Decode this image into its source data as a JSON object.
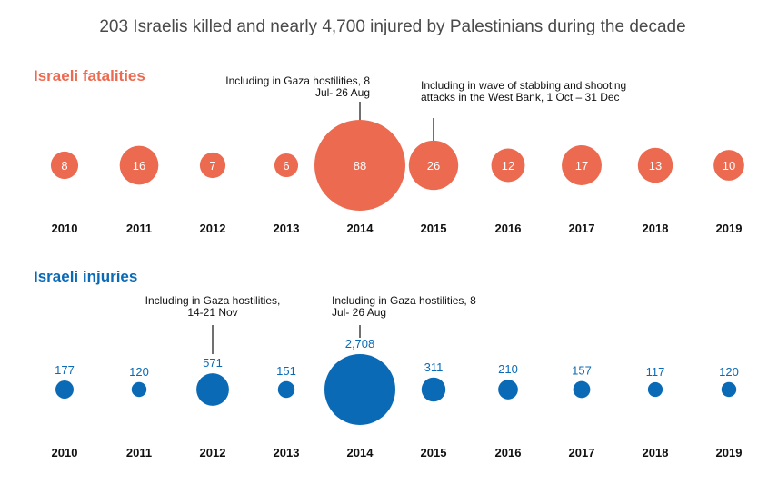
{
  "title": "203 Israelis killed and nearly 4,700 injured by Palestinians during the decade",
  "colors": {
    "fatalities": "#ec6a50",
    "injuries": "#0a6ab6",
    "title": "#4a4a4a",
    "text": "#111111"
  },
  "chart_data": [
    {
      "type": "scatter",
      "title": "Israeli fatalities",
      "x": [
        "2010",
        "2011",
        "2012",
        "2013",
        "2014",
        "2015",
        "2016",
        "2017",
        "2018",
        "2019"
      ],
      "values": [
        8,
        16,
        7,
        6,
        88,
        26,
        12,
        17,
        13,
        10
      ],
      "labels": [
        "8",
        "16",
        "7",
        "6",
        "88",
        "26",
        "12",
        "17",
        "13",
        "10"
      ],
      "annotations": [
        {
          "year": "2014",
          "lines": [
            "Including in Gaza hostilities, 8",
            "Jul- 26 Aug"
          ]
        },
        {
          "year": "2015",
          "lines": [
            "Including in wave of stabbing and shooting",
            "attacks in the West Bank, 1 Oct – 31 Dec"
          ]
        }
      ]
    },
    {
      "type": "scatter",
      "title": "Israeli injuries",
      "x": [
        "2010",
        "2011",
        "2012",
        "2013",
        "2014",
        "2015",
        "2016",
        "2017",
        "2018",
        "2019"
      ],
      "values": [
        177,
        120,
        571,
        151,
        2708,
        311,
        210,
        157,
        117,
        120
      ],
      "labels": [
        "177",
        "120",
        "571",
        "151",
        "2,708",
        "311",
        "210",
        "157",
        "117",
        "120"
      ],
      "annotations": [
        {
          "year": "2012",
          "lines": [
            "Including in Gaza hostilities,",
            "14-21 Nov"
          ]
        },
        {
          "year": "2014",
          "lines": [
            "Including in Gaza hostilities, 8",
            "Jul- 26 Aug"
          ]
        }
      ]
    }
  ]
}
